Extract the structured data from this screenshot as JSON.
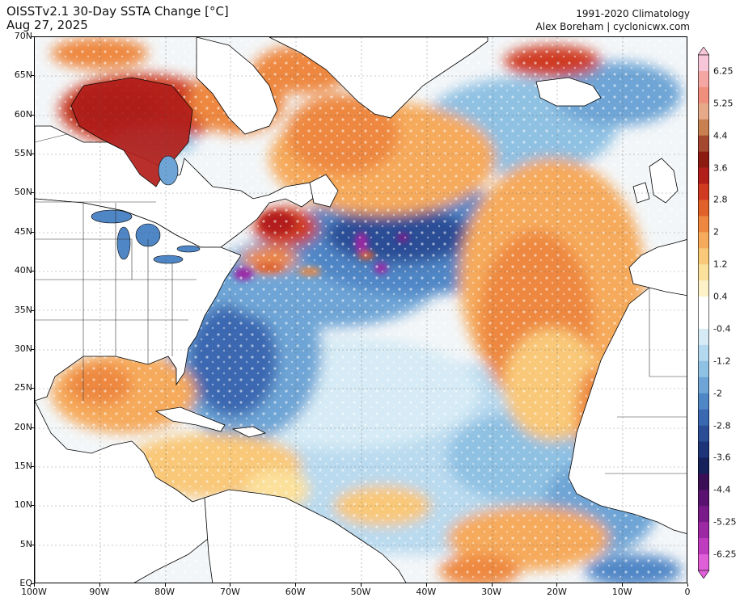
{
  "header": {
    "title_line1": "OISSTv2.1 30-Day SSTA Change [°C]",
    "title_line2": "Aug 27, 2025",
    "right_line1": "1991-2020 Climatology",
    "right_line2": "Alex Boreham | cyclonicwx.com"
  },
  "map": {
    "lat_labels": [
      "70N",
      "65N",
      "60N",
      "55N",
      "50N",
      "45N",
      "40N",
      "35N",
      "30N",
      "25N",
      "20N",
      "15N",
      "10N",
      "5N",
      "EQ"
    ],
    "lon_labels": [
      "100W",
      "90W",
      "80W",
      "70W",
      "60W",
      "50W",
      "40W",
      "30W",
      "20W",
      "10W",
      "0"
    ],
    "extent": {
      "lon_min": -100,
      "lon_max": 0,
      "lat_min": 0,
      "lat_max": 70
    }
  },
  "colorbar": {
    "labels": [
      "6.25",
      "5.25",
      "4.4",
      "3.6",
      "2.8",
      "2",
      "1.2",
      "0.4",
      "-0.4",
      "-1.2",
      "-2",
      "-2.8",
      "-3.6",
      "-4.4",
      "-5.25",
      "-6.25"
    ],
    "colors": [
      "#f7c6d9",
      "#f4a7a2",
      "#ef8e7c",
      "#e6a98a",
      "#c88050",
      "#a44830",
      "#8c1c12",
      "#b21e1a",
      "#cf3a20",
      "#e0622a",
      "#ee8840",
      "#f6aa5c",
      "#f9c878",
      "#fbe19c",
      "#fdf1c8",
      "#ffffff",
      "#ffffff",
      "#d6ebf5",
      "#b4d8ee",
      "#8fc1e3",
      "#6ea5d6",
      "#4f86c6",
      "#3a68b1",
      "#2a4d96",
      "#1d3478",
      "#16205a",
      "#3a0f56",
      "#5a1270",
      "#7a1a8a",
      "#9c28a4",
      "#bf3cbf",
      "#df5fd8"
    ]
  }
}
